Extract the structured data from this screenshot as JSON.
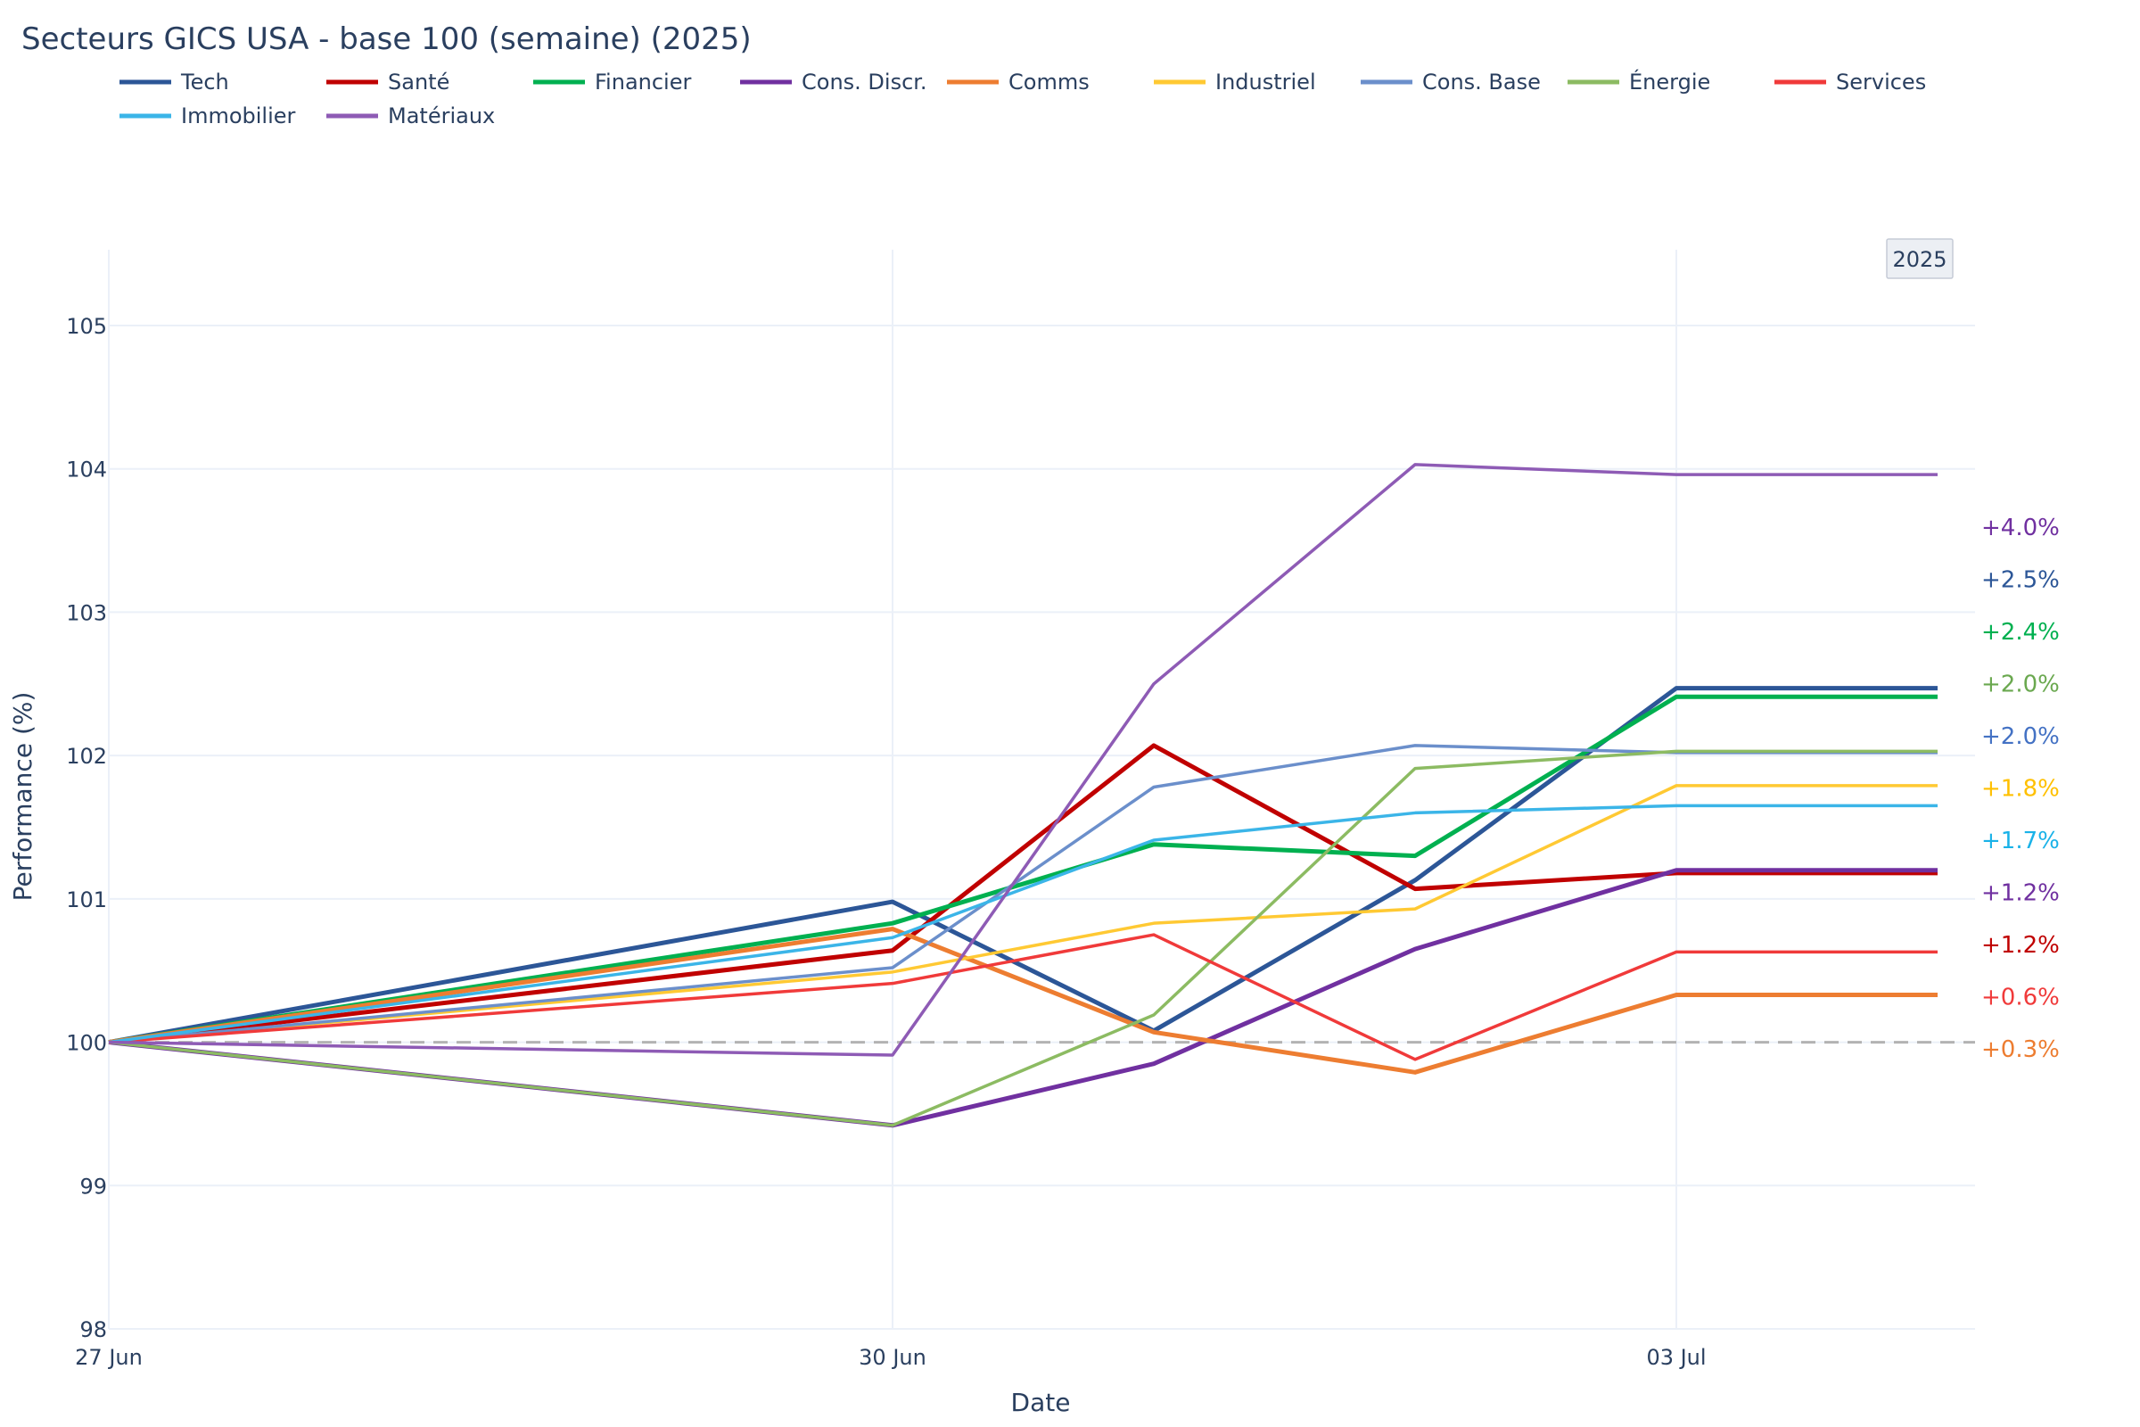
{
  "chart_data": {
    "type": "line",
    "title": "Secteurs GICS USA - base 100 (semaine) (2025)",
    "xlabel": "Date",
    "ylabel": "Performance (%)",
    "ylim": [
      98,
      105.5
    ],
    "yticks": [
      98,
      99,
      100,
      101,
      102,
      103,
      104,
      105
    ],
    "x": [
      "2025-06-27",
      "2025-06-30",
      "2025-07-01",
      "2025-07-02",
      "2025-07-03",
      "2025-07-04"
    ],
    "xticks": [
      {
        "date": "2025-06-27",
        "label": "27 Jun"
      },
      {
        "date": "2025-06-30",
        "label": "30 Jun"
      },
      {
        "date": "2025-07-03",
        "label": "03 Jul"
      }
    ],
    "xrange": [
      "2025-06-27",
      "2025-07-04"
    ],
    "year_badge": "2025",
    "baseline": 100,
    "legend_position": "top",
    "grid": true,
    "series": [
      {
        "name": "Tech",
        "color": "#2c5697",
        "values": [
          100,
          100.98,
          100.08,
          101.13,
          102.47,
          102.47
        ]
      },
      {
        "name": "Santé",
        "color": "#c00000",
        "values": [
          100,
          100.64,
          102.07,
          101.07,
          101.18,
          101.18
        ]
      },
      {
        "name": "Financier",
        "color": "#00b050",
        "values": [
          100,
          100.83,
          101.38,
          101.3,
          102.41,
          102.41
        ]
      },
      {
        "name": "Cons. Discr.",
        "color": "#7030a0",
        "values": [
          100,
          99.42,
          99.85,
          100.65,
          101.2,
          101.2
        ]
      },
      {
        "name": "Comms",
        "color": "#ed7d31",
        "values": [
          100,
          100.79,
          100.07,
          99.79,
          100.33,
          100.33
        ]
      },
      {
        "name": "Industriel",
        "color": "#ffc933",
        "values": [
          100,
          100.49,
          100.83,
          100.93,
          101.79,
          101.79
        ]
      },
      {
        "name": "Cons. Base",
        "color": "#6b8fcb",
        "values": [
          100,
          100.52,
          101.78,
          102.07,
          102.02,
          102.02
        ]
      },
      {
        "name": "Énergie",
        "color": "#8cbb62",
        "values": [
          100,
          99.42,
          100.19,
          101.91,
          102.03,
          102.03
        ]
      },
      {
        "name": "Services",
        "color": "#f03a3a",
        "values": [
          100,
          100.41,
          100.75,
          99.88,
          100.63,
          100.63
        ]
      },
      {
        "name": "Immobilier",
        "color": "#3bb5e8",
        "values": [
          100,
          100.73,
          101.41,
          101.6,
          101.65,
          101.65
        ]
      },
      {
        "name": "Matériaux",
        "color": "#8e5bb5",
        "values": [
          100,
          99.91,
          102.5,
          104.03,
          103.96,
          103.96
        ]
      }
    ],
    "end_labels": [
      {
        "text": "+4.0%",
        "color": "#7030a0"
      },
      {
        "text": "+2.5%",
        "color": "#2c5697"
      },
      {
        "text": "+2.4%",
        "color": "#00b050"
      },
      {
        "text": "+2.0%",
        "color": "#6aa84f"
      },
      {
        "text": "+2.0%",
        "color": "#4472c4"
      },
      {
        "text": "+1.8%",
        "color": "#ffc000"
      },
      {
        "text": "+1.7%",
        "color": "#1ab2e8"
      },
      {
        "text": "+1.2%",
        "color": "#7030a0"
      },
      {
        "text": "+1.2%",
        "color": "#c00000"
      },
      {
        "text": "+0.6%",
        "color": "#f03a3a"
      },
      {
        "text": "+0.3%",
        "color": "#ed7d31"
      }
    ]
  }
}
